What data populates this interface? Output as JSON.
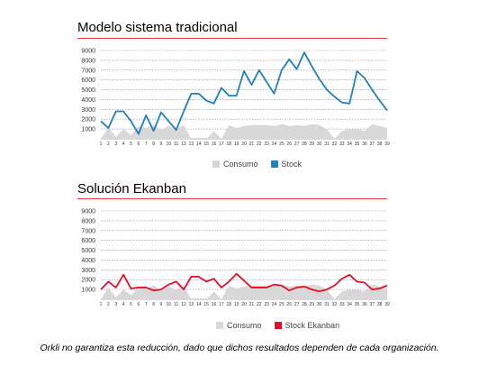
{
  "chart_data": [
    {
      "type": "area+line",
      "title": "Modelo sistema tradicional",
      "ylim": [
        0,
        9000
      ],
      "yticks": [
        1000,
        2000,
        3000,
        4000,
        5000,
        6000,
        7000,
        8000,
        9000
      ],
      "categories": [
        "1",
        "2",
        "3",
        "4",
        "5",
        "6",
        "7",
        "8",
        "9",
        "10",
        "11",
        "12",
        "13",
        "14",
        "15",
        "16",
        "17",
        "18",
        "19",
        "20",
        "21",
        "22",
        "23",
        "24",
        "25",
        "26",
        "27",
        "28",
        "29",
        "30",
        "31",
        "32",
        "33",
        "34",
        "35",
        "36",
        "37",
        "38",
        "39"
      ],
      "grid": true,
      "legend_position": "bottom",
      "series": [
        {
          "name": "Consumo",
          "type": "area",
          "color": "#d8d8d8",
          "values": [
            0,
            1200,
            200,
            1000,
            400,
            1300,
            1100,
            1400,
            900,
            1300,
            1000,
            1400,
            0,
            0,
            0,
            800,
            0,
            1400,
            1100,
            1300,
            1400,
            1400,
            1400,
            1300,
            1500,
            1300,
            1400,
            1300,
            1500,
            1400,
            1000,
            0,
            800,
            1000,
            1000,
            800,
            1500,
            1300,
            1100
          ]
        },
        {
          "name": "Stock",
          "type": "line",
          "color": "#1f7fbf",
          "values": [
            1800,
            1100,
            2800,
            2800,
            1800,
            500,
            2400,
            800,
            2700,
            1800,
            900,
            2800,
            4600,
            4600,
            3900,
            3600,
            5200,
            4400,
            4400,
            6900,
            5500,
            7000,
            5800,
            4600,
            7000,
            8100,
            7100,
            8800,
            7400,
            6100,
            5000,
            4300,
            3700,
            3600,
            6900,
            6200,
            5000,
            3900,
            2900
          ]
        }
      ]
    },
    {
      "type": "area+line",
      "title": "Solución Ekanban",
      "ylim": [
        0,
        9000
      ],
      "yticks": [
        1000,
        2000,
        3000,
        4000,
        5000,
        6000,
        7000,
        8000,
        9000
      ],
      "categories": [
        "1",
        "2",
        "3",
        "4",
        "5",
        "6",
        "7",
        "8",
        "9",
        "10",
        "11",
        "12",
        "13",
        "14",
        "15",
        "16",
        "17",
        "18",
        "19",
        "20",
        "21",
        "22",
        "23",
        "24",
        "25",
        "26",
        "27",
        "28",
        "29",
        "30",
        "31",
        "32",
        "33",
        "34",
        "35",
        "36",
        "37",
        "38",
        "39"
      ],
      "grid": true,
      "legend_position": "bottom",
      "series": [
        {
          "name": "Consumo",
          "type": "area",
          "color": "#d8d8d8",
          "values": [
            0,
            1200,
            200,
            1000,
            400,
            1300,
            1100,
            1400,
            900,
            1300,
            1000,
            1400,
            0,
            0,
            0,
            800,
            0,
            1400,
            1100,
            1300,
            1400,
            1400,
            1400,
            1300,
            1500,
            1300,
            1400,
            1300,
            1500,
            1400,
            1000,
            0,
            800,
            1000,
            1000,
            800,
            1500,
            1300,
            1100
          ]
        },
        {
          "name": "Stock Ekanban",
          "type": "line",
          "color": "#e0102a",
          "values": [
            1000,
            1800,
            1200,
            2500,
            1100,
            1200,
            1200,
            900,
            1000,
            1500,
            1800,
            1000,
            2300,
            2300,
            1800,
            2100,
            1200,
            1800,
            2600,
            1900,
            1200,
            1200,
            1200,
            1500,
            1400,
            900,
            1200,
            1300,
            1000,
            800,
            1000,
            1400,
            2100,
            2500,
            1800,
            1700,
            1000,
            1100,
            1400
          ]
        }
      ]
    }
  ],
  "footnote": "Orkli no garantiza esta reducción, dado que dichos resultados dependen de cada organización."
}
